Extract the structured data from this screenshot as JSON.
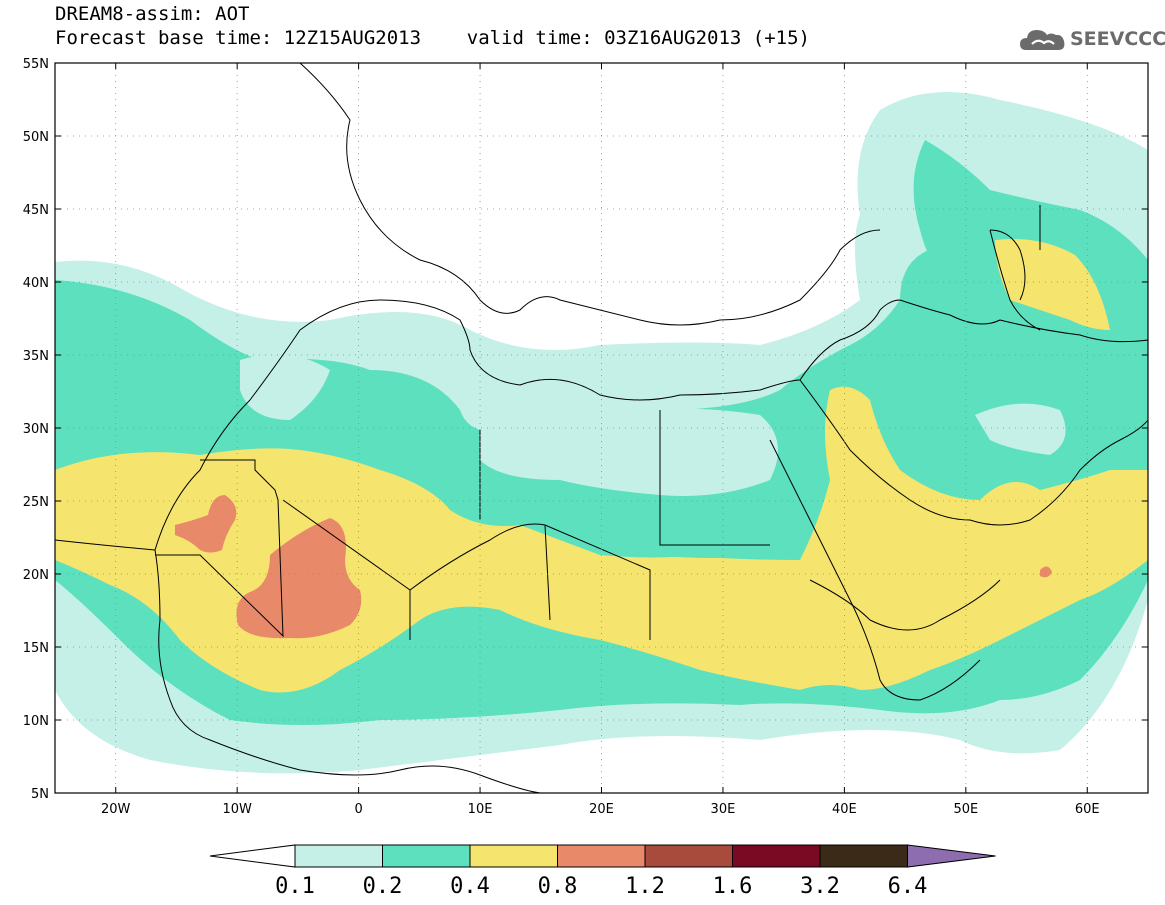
{
  "header": {
    "line1": "DREAM8-assim: AOT",
    "line2": "Forecast base time: 12Z15AUG2013    valid time: 03Z16AUG2013 (+15)"
  },
  "logo": {
    "text": "SEEVCCC",
    "icon": "cloud-icon",
    "color": "#6b6b6b"
  },
  "map": {
    "lon_range": [
      -25,
      65
    ],
    "lat_range": [
      5,
      55
    ],
    "lat_labels": [
      "5N",
      "10N",
      "15N",
      "20N",
      "25N",
      "30N",
      "35N",
      "40N",
      "45N",
      "50N",
      "55N"
    ],
    "lon_labels": [
      "20W",
      "10W",
      "0",
      "10E",
      "20E",
      "30E",
      "40E",
      "50E",
      "60E"
    ],
    "grid": "dotted"
  },
  "colorbar": {
    "levels": [
      "0.1",
      "0.2",
      "0.4",
      "0.8",
      "1.2",
      "1.6",
      "3.2",
      "6.4"
    ],
    "colors": [
      "#ffffff",
      "#c4f0e8",
      "#5ce0bd",
      "#f5e46e",
      "#e8896a",
      "#a84a3c",
      "#7a0a24",
      "#3b2a18",
      "#8d6cb0"
    ]
  }
}
